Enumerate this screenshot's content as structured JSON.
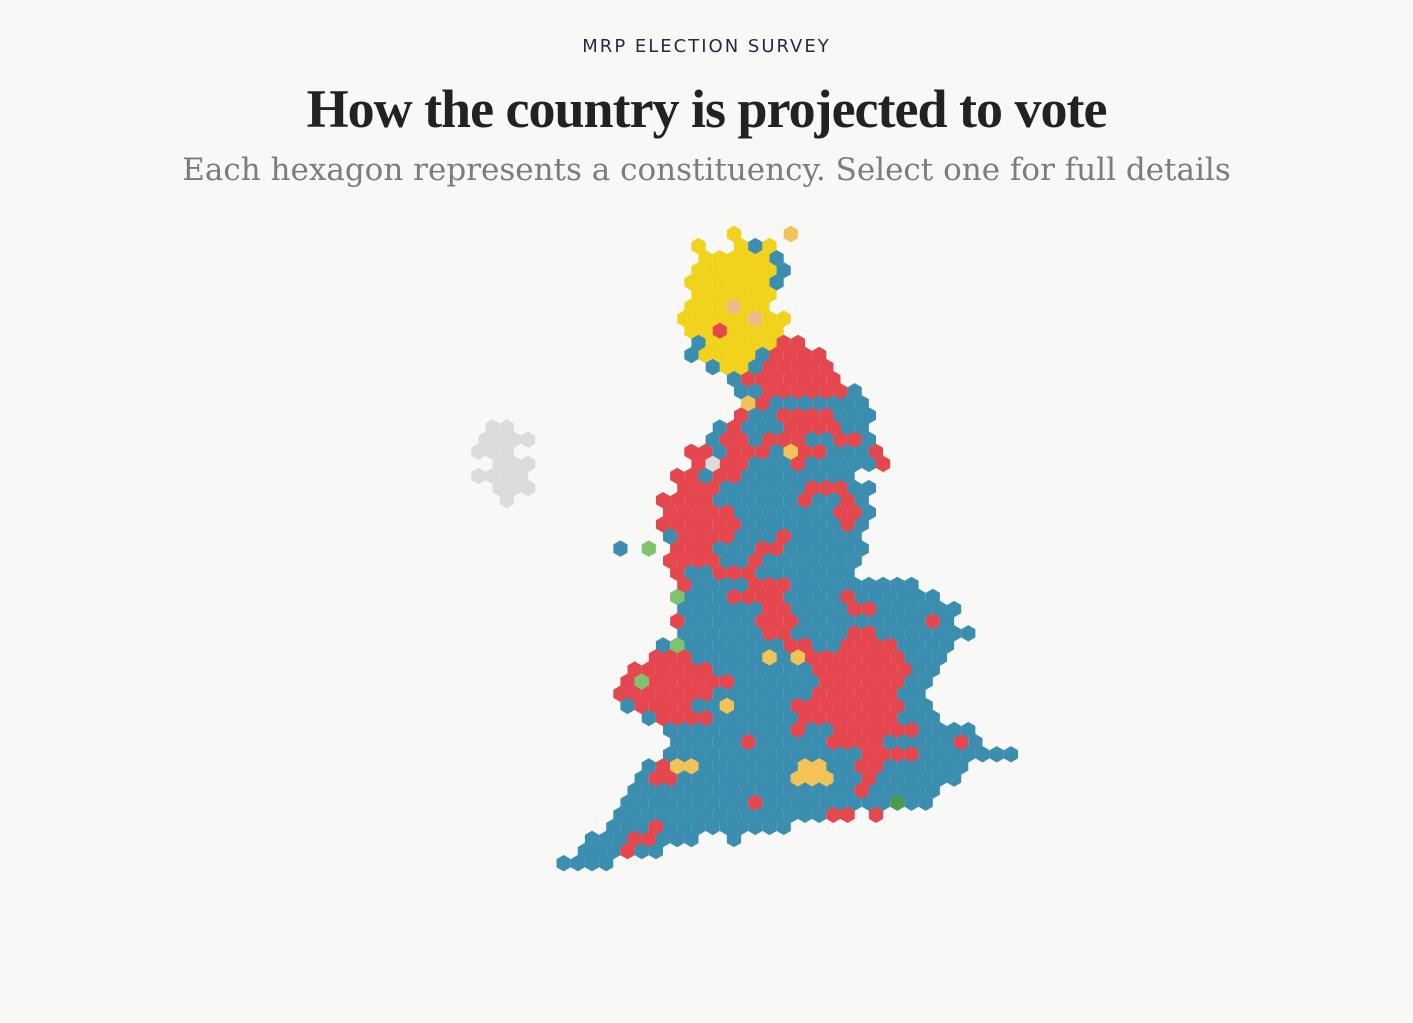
{
  "header": {
    "kicker": "MRP ELECTION SURVEY",
    "title": "How the country is projected to vote",
    "subtitle": "Each hexagon represents a constituency. Select one for full details"
  },
  "colors": {
    "blue": "#3b8eb0",
    "red": "#e5474f",
    "yellow": "#f1d21c",
    "amber": "#f4c356",
    "green": "#7fc36e",
    "darkgreen": "#4b9a4d",
    "grey": "#dcdcdc",
    "peach": "#f0b98a"
  },
  "hexmap": {
    "description_ids": "Constituencies arranged as a hexagon cartogram of Great Britain; each row lists colour codes per hexagon (. = empty).",
    "legend": {
      "B": "blue",
      "R": "red",
      "Y": "yellow",
      "A": "amber",
      "G": "green",
      "D": "darkgreen",
      "X": "grey",
      "P": "peach"
    },
    "rows": [
      {
        "r": 0,
        "start": 20,
        "cells": "Y...A"
      },
      {
        "r": 1,
        "start": 17,
        "cells": "Y..YBY"
      },
      {
        "r": 2,
        "start": 18,
        "cells": "YYYYYB"
      },
      {
        "r": 3,
        "start": 17,
        "cells": "YYYYYYB"
      },
      {
        "r": 4,
        "start": 17,
        "cells": "YYYYYYB"
      },
      {
        "r": 5,
        "start": 17,
        "cells": "YYYYYY"
      },
      {
        "r": 6,
        "start": 17,
        "cells": "YYYPYY"
      },
      {
        "r": 7,
        "start": 16,
        "cells": "YYYYYPYY"
      },
      {
        "r": 8,
        "start": 17,
        "cells": "YYRYYYY"
      },
      {
        "r": 9,
        "start": 17,
        "cells": "BYYYYYRR"
      },
      {
        "r": 10,
        "start": 17,
        "cells": "BYYYYBRRRR"
      },
      {
        "r": 11,
        "start": 18,
        "cells": "BYYBRRRRR"
      },
      {
        "r": 12,
        "start": 20,
        "cells": "BRRRRRRR"
      },
      {
        "r": 13,
        "start": 20,
        "cells": "BBRRRRRRB"
      },
      {
        "r": 14,
        "start": 21,
        "cells": "ARBBBBBBB"
      },
      {
        "r": 15,
        "start": 20,
        "cells": "RBBRRRRBBB"
      },
      {
        "r": 16,
        "start": 19,
        "cells": "BRBBBRRRRBB"
      },
      {
        "r": 17,
        "start": 18,
        "cells": "BRRBRRRBBRRB"
      },
      {
        "r": 18,
        "start": 17,
        "cells": "RRBRRRBARRBBBR"
      },
      {
        "r": 19,
        "start": 17,
        "cells": "RXRRBBBRBBBBBR"
      },
      {
        "r": 20,
        "start": 16,
        "cells": "RRBRRBBBBBBBB"
      },
      {
        "r": 21,
        "start": 16,
        "cells": "RRRBBBBBBRRRBB"
      },
      {
        "r": 22,
        "start": 15,
        "cells": "RRRRBBBBBBRBBRB"
      },
      {
        "r": 23,
        "start": 15,
        "cells": "RRRRRBBBBBBBRRB"
      },
      {
        "r": 24,
        "start": 15,
        "cells": "RRRRRRBBBBBBBRB"
      },
      {
        "r": 25,
        "start": 15,
        "cells": "BRRRRBBBRBBBBB"
      },
      {
        "r": 26,
        "start": 14,
        "cells": "G.RRRBBBRRBBBBBB"
      },
      {
        "r": 27,
        "start": 15,
        "cells": "RRRRBBRBBBBBBB"
      },
      {
        "r": 28,
        "start": 16,
        "cells": "RBBRRRBBBBBBB"
      },
      {
        "r": 29,
        "start": 16,
        "cells": "RBBBBRRRBBBBBBBBB"
      },
      {
        "r": 30,
        "start": 16,
        "cells": "GBBBRRRRBBBBRBBBBBB"
      },
      {
        "r": 31,
        "start": 16,
        "cells": "BBBBBBRRBBBBRRBBBBBB"
      },
      {
        "r": 32,
        "start": 16,
        "cells": "RBBBBBRRRBBBBBBBBBRB"
      },
      {
        "r": 33,
        "start": 16,
        "cells": "BBBBBBRRBBBBRRBBBBBBB"
      },
      {
        "r": 34,
        "start": 15,
        "cells": "BGBBBBBBBRRBBRRRRBBBB"
      },
      {
        "r": 35,
        "start": 14,
        "cells": "RRRBBBBBABARRRRRRRBBB"
      },
      {
        "r": 36,
        "start": 13,
        "cells": "RRRRRRBBBBBBBRRRRRRRBB"
      },
      {
        "r": 37,
        "start": 12,
        "cells": "RGRRRRRRBBBBBBRRRRRRBB"
      },
      {
        "r": 38,
        "start": 12,
        "cells": "RRRRRRRBBBBBBBRRRRRRBB"
      },
      {
        "r": 39,
        "start": 12,
        "cells": "BRRRRBBABBBBRRRRRRRRBB"
      },
      {
        "r": 40,
        "start": 14,
        "cells": "BRRRRBBBBBBRRRRRRRBBB"
      },
      {
        "r": 41,
        "start": 15,
        "cells": "BBBBBBBBBRBBRRRRRRBBBB"
      },
      {
        "r": 42,
        "start": 16,
        "cells": "BBBBBRBBBBBRRRRBBBBBRB"
      },
      {
        "r": 43,
        "start": 15,
        "cells": "BBBBBBBBBBBBBBRRRRBBBBBBB"
      },
      {
        "r": 44,
        "start": 14,
        "cells": "BRAABBBBBBBAABBRRBBBBBB"
      },
      {
        "r": 45,
        "start": 13,
        "cells": "BRRBBBBBBBBAAABBRBBBBBB"
      },
      {
        "r": 46,
        "start": 13,
        "cells": "BBBBBBBBBBBBBBBBRBBBBB"
      },
      {
        "r": 47,
        "start": 12,
        "cells": "BBBBBBBBBRBBBBBBBBBDBB"
      },
      {
        "r": 48,
        "start": 12,
        "cells": "BBBBBBBBBBBBBBBRR.R"
      },
      {
        "r": 49,
        "start": 11,
        "cells": "BBBRBBBBBBBBB"
      },
      {
        "r": 50,
        "start": 10,
        "cells": "BBBRRBBB..B"
      },
      {
        "r": 51,
        "start": 9,
        "cells": "BBBRBB"
      },
      {
        "r": 52,
        "start": 8,
        "cells": "BBBB"
      }
    ],
    "extra": [
      {
        "r": 16,
        "c": 3,
        "code": "X"
      },
      {
        "r": 16,
        "c": 4,
        "code": "X"
      },
      {
        "r": 17,
        "c": 2,
        "code": "X"
      },
      {
        "r": 17,
        "c": 3,
        "code": "X"
      },
      {
        "r": 17,
        "c": 4,
        "code": "X"
      },
      {
        "r": 17,
        "c": 5,
        "code": "X"
      },
      {
        "r": 18,
        "c": 2,
        "code": "X"
      },
      {
        "r": 18,
        "c": 3,
        "code": "X"
      },
      {
        "r": 18,
        "c": 4,
        "code": "X"
      },
      {
        "r": 19,
        "c": 3,
        "code": "X"
      },
      {
        "r": 19,
        "c": 4,
        "code": "X"
      },
      {
        "r": 19,
        "c": 5,
        "code": "X"
      },
      {
        "r": 20,
        "c": 2,
        "code": "X"
      },
      {
        "r": 20,
        "c": 3,
        "code": "X"
      },
      {
        "r": 20,
        "c": 4,
        "code": "X"
      },
      {
        "r": 20,
        "c": 5,
        "code": "X"
      },
      {
        "r": 21,
        "c": 3,
        "code": "X"
      },
      {
        "r": 21,
        "c": 4,
        "code": "X"
      },
      {
        "r": 21,
        "c": 5,
        "code": "X"
      },
      {
        "r": 22,
        "c": 4,
        "code": "X"
      },
      {
        "r": 26,
        "c": 12,
        "code": "B"
      }
    ]
  }
}
